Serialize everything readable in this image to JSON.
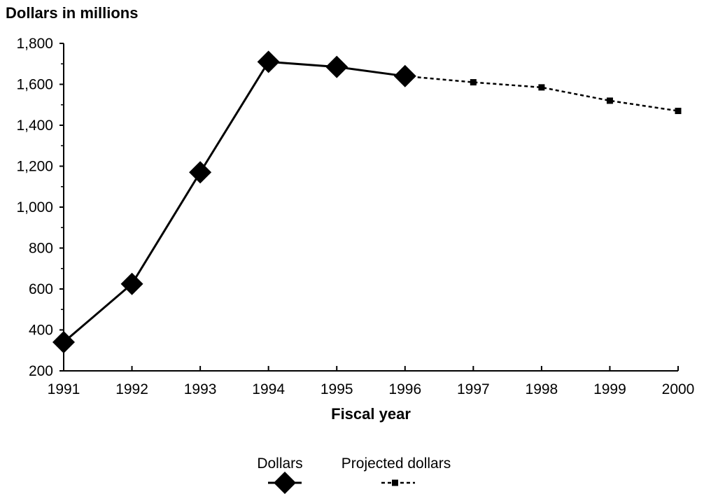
{
  "chart_data": {
    "type": "line",
    "title": "",
    "ylabel": "Dollars in millions",
    "xlabel": "Fiscal year",
    "ylim": [
      200,
      1800
    ],
    "yticks": [
      200,
      400,
      600,
      800,
      1000,
      1200,
      1400,
      1600,
      1800
    ],
    "ytick_labels": [
      "200",
      "400",
      "600",
      "800",
      "1,000",
      "1,200",
      "1,400",
      "1,600",
      "1,800"
    ],
    "categories": [
      "1991",
      "1992",
      "1993",
      "1994",
      "1995",
      "1996",
      "1997",
      "1998",
      "1999",
      "2000"
    ],
    "grid": false,
    "legend_position": "bottom-center",
    "series": [
      {
        "name": "Dollars",
        "style": "solid",
        "marker": "diamond",
        "color": "#000000",
        "x": [
          "1991",
          "1992",
          "1993",
          "1994",
          "1995",
          "1996"
        ],
        "values": [
          340,
          625,
          1170,
          1710,
          1685,
          1640
        ]
      },
      {
        "name": "Projected dollars",
        "style": "dotted",
        "marker": "square",
        "color": "#000000",
        "x": [
          "1996",
          "1997",
          "1998",
          "1999",
          "2000"
        ],
        "values": [
          1640,
          1610,
          1585,
          1520,
          1470
        ]
      }
    ]
  }
}
